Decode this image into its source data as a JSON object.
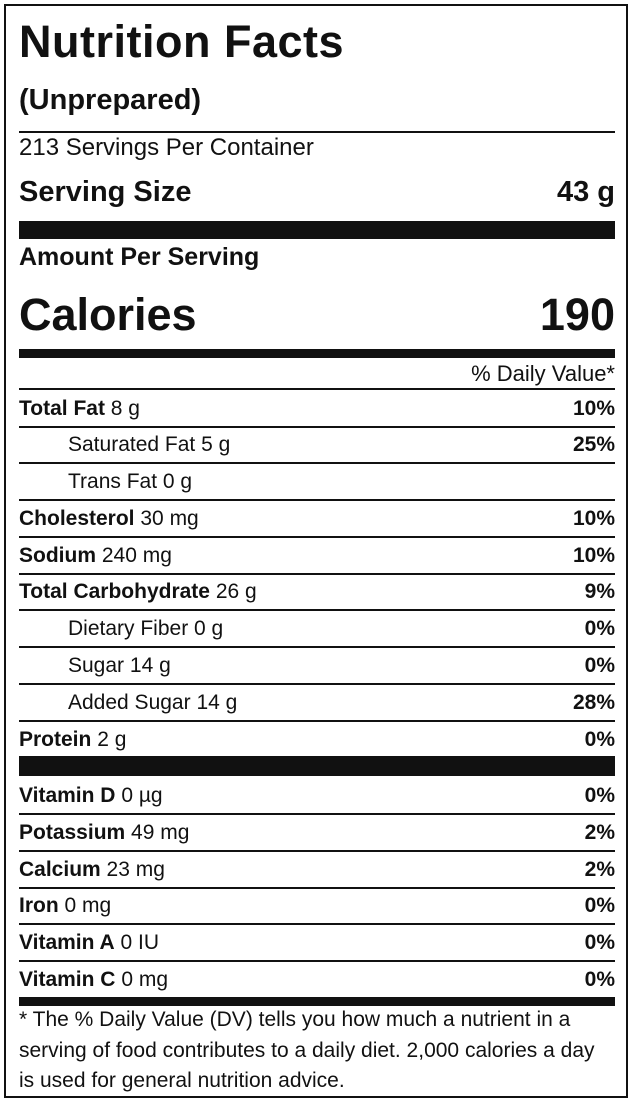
{
  "title": "Nutrition Facts",
  "subtitle": "(Unprepared)",
  "servings_per_container": "213 Servings Per Container",
  "serving_size": {
    "label": "Serving Size",
    "value": "43 g"
  },
  "amount_per_serving": "Amount Per Serving",
  "calories": {
    "label": "Calories",
    "value": "190"
  },
  "daily_value_header": "% Daily Value*",
  "nutrients": [
    {
      "name": "Total Fat",
      "amount": "8 g",
      "dv": "10%",
      "indent": false
    },
    {
      "name": "Saturated Fat",
      "amount": "5 g",
      "dv": "25%",
      "indent": true
    },
    {
      "name": "Trans Fat",
      "amount": "0 g",
      "dv": "",
      "indent": true
    },
    {
      "name": "Cholesterol",
      "amount": "30 mg",
      "dv": "10%",
      "indent": false
    },
    {
      "name": "Sodium",
      "amount": "240 mg",
      "dv": "10%",
      "indent": false
    },
    {
      "name": "Total Carbohydrate",
      "amount": "26 g",
      "dv": "9%",
      "indent": false
    },
    {
      "name": "Dietary Fiber",
      "amount": "0 g",
      "dv": "0%",
      "indent": true
    },
    {
      "name": "Sugar",
      "amount": "14 g",
      "dv": "0%",
      "indent": true
    },
    {
      "name": "Added Sugar",
      "amount": "14 g",
      "dv": "28%",
      "indent": true
    },
    {
      "name": "Protein",
      "amount": "2 g",
      "dv": "0%",
      "indent": false
    }
  ],
  "vitamins": [
    {
      "name": "Vitamin D",
      "amount": "0 µg",
      "dv": "0%"
    },
    {
      "name": "Potassium",
      "amount": "49 mg",
      "dv": "2%"
    },
    {
      "name": "Calcium",
      "amount": "23 mg",
      "dv": "2%"
    },
    {
      "name": "Iron",
      "amount": "0 mg",
      "dv": "0%"
    },
    {
      "name": "Vitamin A",
      "amount": "0 IU",
      "dv": "0%"
    },
    {
      "name": "Vitamin C",
      "amount": "0 mg",
      "dv": "0%"
    }
  ],
  "footnote": "* The % Daily Value (DV) tells you how much a nutrient in a serving of food contributes to a daily diet. 2,000 calories a day is used for general nutrition advice."
}
